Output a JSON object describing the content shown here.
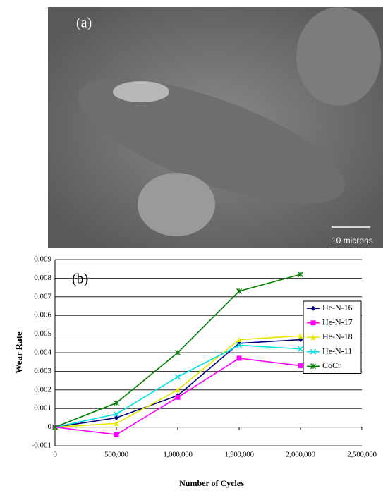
{
  "image": {
    "label": "(a)",
    "scale_bar": "10 microns"
  },
  "chart_data": {
    "type": "line",
    "annotation": "(b)",
    "x_label": "Number of Cycles",
    "y_label": "Wear Rate",
    "x": [
      0,
      500000,
      1000000,
      1500000,
      2000000
    ],
    "series": [
      {
        "name": "He-N-16",
        "color": "#000080",
        "marker": "diamond",
        "values": [
          0,
          0.0005,
          0.0017,
          0.0045,
          0.0047
        ]
      },
      {
        "name": "He-N-17",
        "color": "#ff00ff",
        "marker": "square",
        "values": [
          0,
          -0.0004,
          0.0016,
          0.0037,
          0.0033
        ]
      },
      {
        "name": "He-N-18",
        "color": "#e6e600",
        "marker": "triangle",
        "values": [
          0,
          0.0002,
          0.002,
          0.0047,
          0.0049
        ]
      },
      {
        "name": "He-N-11",
        "color": "#00e0e0",
        "marker": "x",
        "values": [
          0,
          0.0007,
          0.0027,
          0.0044,
          0.0042
        ]
      },
      {
        "name": "CoCr",
        "color": "#008000",
        "marker": "star",
        "values": [
          0,
          0.0013,
          0.004,
          0.0073,
          0.0082
        ]
      }
    ],
    "xlim": [
      0,
      2500000
    ],
    "xticks": [
      0,
      {
        "value": 500000,
        "label": "500,000"
      },
      {
        "value": 1000000,
        "label": "1,000,000"
      },
      {
        "value": 1500000,
        "label": "1,500,000"
      },
      {
        "value": 2000000,
        "label": "2,000,000"
      },
      {
        "value": 2500000,
        "label": "2,500,000"
      }
    ],
    "ylim": [
      -0.001,
      0.009
    ],
    "yticks": [
      -0.001,
      0,
      0.001,
      0.002,
      0.003,
      0.004,
      0.005,
      0.006,
      0.007,
      0.008,
      0.009
    ],
    "grid": true,
    "legend": "right"
  }
}
